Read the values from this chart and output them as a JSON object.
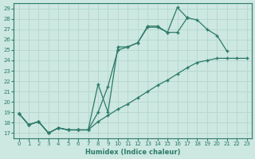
{
  "xlabel": "Humidex (Indice chaleur)",
  "bg_color": "#cce8e0",
  "grid_color": "#b8d8d0",
  "line_color": "#2d7a6a",
  "xlim": [
    -0.5,
    23.5
  ],
  "ylim": [
    16.5,
    29.5
  ],
  "xticks": [
    0,
    1,
    2,
    3,
    4,
    5,
    6,
    7,
    8,
    9,
    10,
    11,
    12,
    13,
    14,
    15,
    16,
    17,
    18,
    19,
    20,
    21,
    22,
    23
  ],
  "yticks": [
    17,
    18,
    19,
    20,
    21,
    22,
    23,
    24,
    25,
    26,
    27,
    28,
    29
  ],
  "line1_x": [
    0,
    1,
    2,
    3,
    4,
    5,
    6,
    7,
    8,
    9,
    10,
    11,
    12,
    13,
    14,
    15,
    16,
    17,
    18,
    19,
    20,
    21
  ],
  "line1_y": [
    18.9,
    17.8,
    18.1,
    17.0,
    17.5,
    17.3,
    17.3,
    17.3,
    19.0,
    21.5,
    25.0,
    25.3,
    25.7,
    27.2,
    27.2,
    26.7,
    29.1,
    28.1,
    27.9,
    27.0,
    26.4,
    24.9
  ],
  "line2_x": [
    0,
    1,
    2,
    3,
    4,
    5,
    6,
    7,
    8,
    9,
    10,
    11,
    12,
    13,
    14,
    15,
    16,
    17
  ],
  "line2_y": [
    18.9,
    17.8,
    18.1,
    17.0,
    17.5,
    17.3,
    17.3,
    17.3,
    21.7,
    19.0,
    25.3,
    25.3,
    25.7,
    27.3,
    27.3,
    26.7,
    26.7,
    28.1
  ],
  "line3_x": [
    0,
    1,
    2,
    3,
    4,
    5,
    6,
    7,
    8,
    9,
    10,
    11,
    12,
    13,
    14,
    15,
    16,
    17,
    18,
    19,
    20,
    21,
    22,
    23
  ],
  "line3_y": [
    18.9,
    17.8,
    18.1,
    17.0,
    17.5,
    17.3,
    17.3,
    17.3,
    18.1,
    18.7,
    19.3,
    19.8,
    20.4,
    21.0,
    21.6,
    22.1,
    22.7,
    23.3,
    23.8,
    24.0,
    24.2,
    24.2,
    24.2,
    24.2
  ]
}
